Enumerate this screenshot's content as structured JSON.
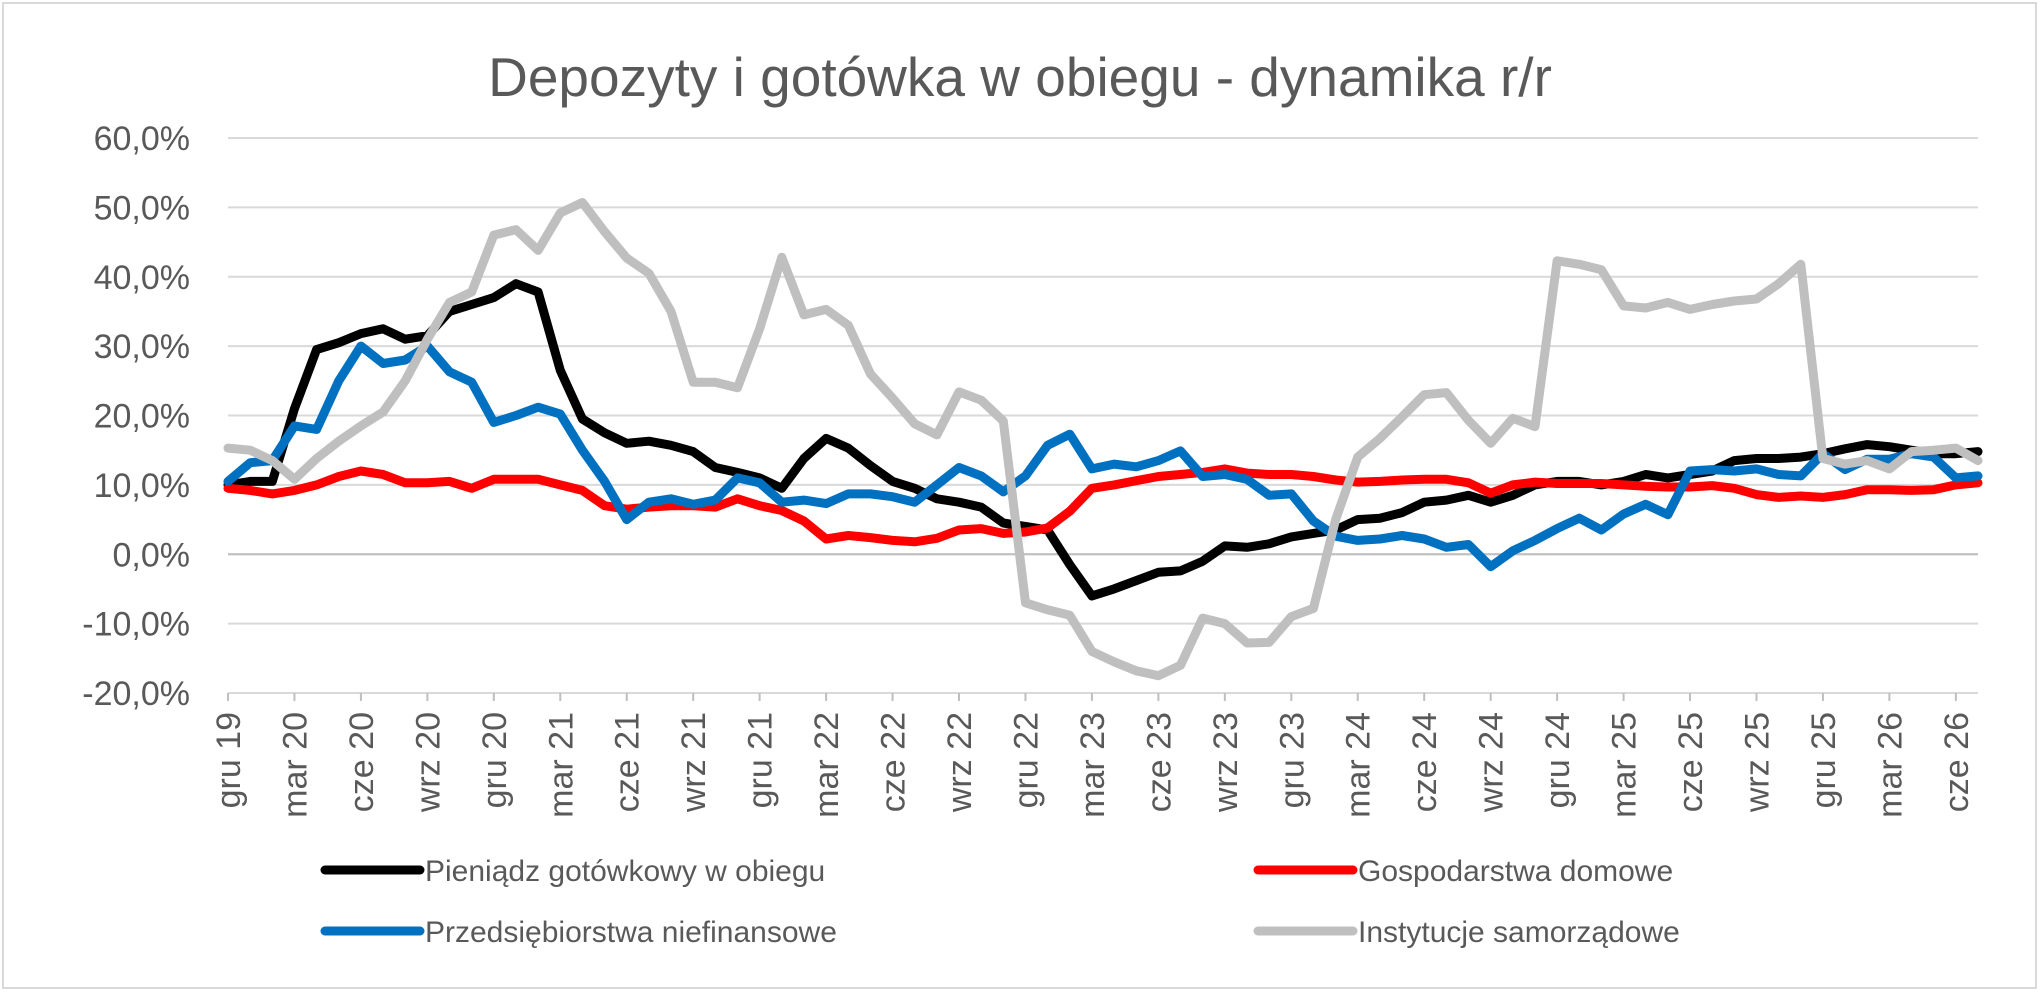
{
  "chart_data": {
    "type": "line",
    "title": "Depozyty i gotówka w obiegu - dynamika r/r",
    "xlabel": "",
    "ylabel": "",
    "ylim": [
      -20,
      60
    ],
    "y_ticks": [
      60,
      50,
      40,
      30,
      20,
      10,
      0,
      -10,
      -20
    ],
    "y_tick_labels": [
      "60,0%",
      "50,0%",
      "40,0%",
      "30,0%",
      "20,0%",
      "10,0%",
      "0,0%",
      "-10,0%",
      "-20,0%"
    ],
    "grid": true,
    "legend_position": "bottom",
    "x_tick_labels": [
      "gru 19",
      "mar 20",
      "cze 20",
      "wrz 20",
      "gru 20",
      "mar 21",
      "cze 21",
      "wrz 21",
      "gru 21",
      "mar 22",
      "cze 22",
      "wrz 22",
      "gru 22",
      "mar 23",
      "cze 23",
      "wrz 23",
      "gru 23",
      "mar 24",
      "cze 24",
      "wrz 24",
      "gru 24",
      "mar 25",
      "cze 25",
      "wrz 25",
      "gru 25",
      "mar 26",
      "cze 26"
    ],
    "x_tick_every": 3,
    "series": [
      {
        "name": "Pieniądz gotówkowy w obiegu",
        "color": "#000000",
        "values": [
          10,
          10.5,
          10.5,
          21,
          29.5,
          30.5,
          31.8,
          32.5,
          31,
          31.5,
          35,
          36,
          37,
          39,
          37.8,
          26.5,
          19.5,
          17.5,
          16,
          16.3,
          15.7,
          14.8,
          12.5,
          11.8,
          11,
          9.5,
          13.8,
          16.7,
          15.3,
          12.8,
          10.5,
          9.5,
          8,
          7.5,
          6.8,
          4.5,
          4,
          3.5,
          -1.5,
          -6,
          -5,
          -3.8,
          -2.6,
          -2.4,
          -1,
          1.2,
          1,
          1.5,
          2.5,
          3,
          3.5,
          5,
          5.2,
          6,
          7.5,
          7.8,
          8.5,
          7.5,
          8.5,
          10,
          10.5,
          10.5,
          10,
          10.5,
          11.5,
          11,
          11.5,
          12,
          13.5,
          13.8,
          13.8,
          14,
          14.5,
          15.2,
          15.8,
          15.5,
          15,
          14.5,
          14.5,
          14.8
        ]
      },
      {
        "name": "Gospodarstwa domowe",
        "color": "#ff0000",
        "values": [
          9.5,
          9.2,
          8.7,
          9.2,
          10,
          11.2,
          12,
          11.5,
          10.3,
          10.3,
          10.5,
          9.5,
          10.8,
          10.8,
          10.8,
          10,
          9.2,
          7,
          6.5,
          6.8,
          7,
          7,
          6.8,
          8,
          7,
          6.3,
          4.8,
          2.2,
          2.7,
          2.4,
          2,
          1.8,
          2.3,
          3.5,
          3.7,
          3,
          3.2,
          3.8,
          6.2,
          9.5,
          10,
          10.6,
          11.2,
          11.5,
          11.8,
          12.3,
          11.7,
          11.5,
          11.5,
          11.2,
          10.7,
          10.4,
          10.5,
          10.7,
          10.8,
          10.8,
          10.3,
          8.8,
          10,
          10.4,
          10.2,
          10.2,
          10.2,
          10,
          9.8,
          9.7,
          9.7,
          9.9,
          9.5,
          8.6,
          8.2,
          8.4,
          8.2,
          8.6,
          9.3,
          9.3,
          9.2,
          9.3,
          10,
          10.3
        ]
      },
      {
        "name": "Przedsiębiorstwa niefinansowe",
        "color": "#0070c0",
        "values": [
          10.5,
          13.2,
          13.5,
          18.5,
          18,
          25,
          30,
          27.5,
          28,
          30,
          26.3,
          24.8,
          19,
          20,
          21.2,
          20.2,
          15,
          10.5,
          5,
          7.5,
          8,
          7.2,
          7.8,
          11,
          10.3,
          7.5,
          7.8,
          7.3,
          8.7,
          8.7,
          8.3,
          7.5,
          10,
          12.5,
          11.3,
          9,
          11.3,
          15.7,
          17.3,
          12.3,
          13,
          12.6,
          13.5,
          14.9,
          11.2,
          11.5,
          10.8,
          8.5,
          8.7,
          4.8,
          2.6,
          2,
          2.2,
          2.7,
          2.2,
          1,
          1.4,
          -1.8,
          0.5,
          2,
          3.7,
          5.2,
          3.5,
          5.8,
          7.2,
          5.7,
          12,
          12.2,
          12,
          12.3,
          11.5,
          11.3,
          14.5,
          12.2,
          13.7,
          13.7,
          14.5,
          14,
          11,
          11.3
        ]
      },
      {
        "name": "Instytucje samorządowe",
        "color": "#bfbfbf",
        "values": [
          15.3,
          15,
          13.5,
          10.8,
          13.8,
          16.3,
          18.5,
          20.5,
          25,
          31,
          36.3,
          37.8,
          46,
          46.8,
          43.8,
          49.2,
          50.7,
          46.5,
          42.7,
          40.5,
          35,
          24.8,
          24.8,
          24,
          32.5,
          42.8,
          34.5,
          35.3,
          33,
          26,
          22.5,
          18.8,
          17.2,
          23.4,
          22.2,
          19.2,
          -7,
          -8,
          -8.8,
          -14,
          -15.5,
          -16.8,
          -17.5,
          -16,
          -9.2,
          -10,
          -12.8,
          -12.7,
          -9,
          -7.8,
          5,
          14,
          16.7,
          19.8,
          23,
          23.3,
          19.3,
          16,
          19.6,
          18.4,
          42.3,
          41.8,
          41,
          35.8,
          35.5,
          36.3,
          35.3,
          36,
          36.5,
          36.8,
          39,
          41.8,
          13.8,
          13,
          13.5,
          12.3,
          14.8,
          15,
          15.3,
          13.5
        ]
      }
    ]
  }
}
